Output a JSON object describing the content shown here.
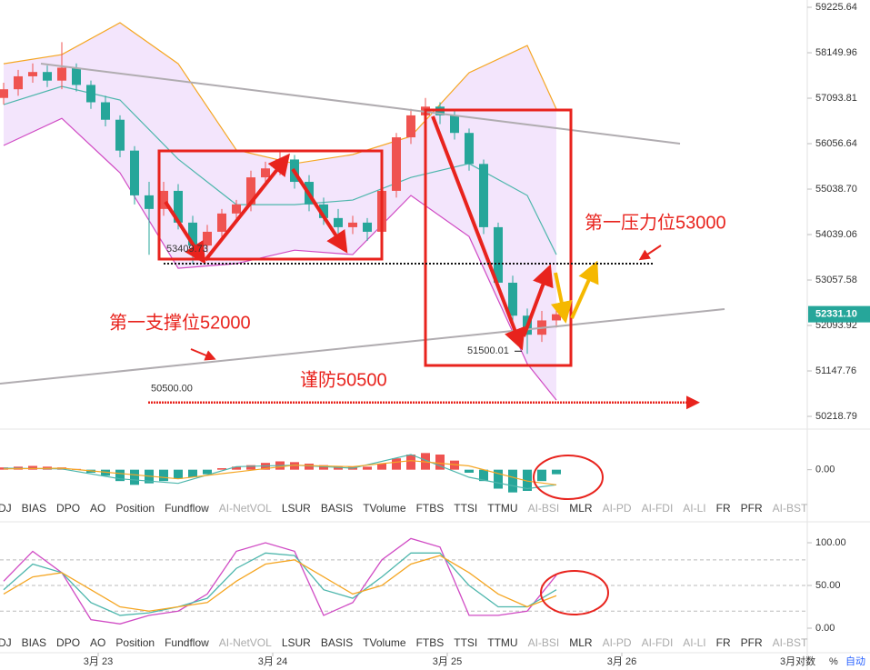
{
  "chart_data": [
    {
      "type": "candlestick",
      "log_scale": true,
      "grid": false,
      "up_color": "#ef5350",
      "down_color": "#26a69a",
      "xlim": [
        -0.5,
        110.5
      ],
      "xticks": [
        {
          "value": 13,
          "label": "3月 23"
        },
        {
          "value": 37,
          "label": "3月 24"
        },
        {
          "value": 61,
          "label": "3月 25"
        },
        {
          "value": 85,
          "label": "3月 26"
        }
      ],
      "ylim": [
        49962,
        59400
      ],
      "yticks": [
        59225.64,
        58149.96,
        57093.81,
        56056.64,
        {
          "value": 55038.7,
          "label": "55038.70"
        },
        54039.06,
        53057.58,
        52093.92,
        51147.76,
        50218.79
      ],
      "x": [
        0,
        2,
        4,
        6,
        8,
        10,
        12,
        14,
        16,
        18,
        20,
        22,
        24,
        26,
        28,
        30,
        32,
        34,
        36,
        38,
        40,
        42,
        44,
        46,
        48,
        50,
        52,
        54,
        56,
        58,
        60,
        62,
        64,
        66,
        68,
        70,
        72,
        74,
        76
      ],
      "open": [
        57100,
        57300,
        57600,
        57700,
        57500,
        57800,
        57400,
        57000,
        56600,
        55900,
        54900,
        54600,
        55000,
        54300,
        53800,
        54100,
        54500,
        54700,
        55300,
        55500,
        55700,
        55200,
        54700,
        54400,
        54200,
        54300,
        54100,
        55000,
        56200,
        56700,
        56900,
        56700,
        56300,
        55600,
        54200,
        53000,
        52300,
        51900,
        52200
      ],
      "high": [
        57450,
        57750,
        57900,
        57850,
        58400,
        57900,
        57500,
        57150,
        56700,
        56000,
        55200,
        55200,
        55150,
        54450,
        54250,
        54600,
        54800,
        55450,
        55650,
        55900,
        55800,
        55350,
        54850,
        54600,
        54450,
        54400,
        55150,
        56300,
        56850,
        57100,
        57000,
        56800,
        56400,
        55700,
        54300,
        53150,
        52450,
        52400,
        52500
      ],
      "low": [
        56950,
        57150,
        57450,
        57350,
        57300,
        57250,
        56850,
        56450,
        55750,
        54700,
        53600,
        54450,
        54150,
        53409.73,
        53650,
        53950,
        54350,
        54550,
        55100,
        55350,
        55050,
        54550,
        54250,
        53900,
        54050,
        53900,
        53950,
        54850,
        56050,
        56550,
        56500,
        56150,
        55450,
        54050,
        52850,
        52100,
        51500.01,
        51750,
        52050
      ],
      "close": [
        57300,
        57600,
        57700,
        57500,
        57800,
        57400,
        57000,
        56600,
        55900,
        54900,
        54600,
        55000,
        54300,
        53800,
        54100,
        54500,
        54700,
        55300,
        55500,
        55700,
        55200,
        54700,
        54400,
        54200,
        54300,
        54100,
        55000,
        56200,
        56700,
        56900,
        56700,
        56300,
        55600,
        54200,
        53000,
        52300,
        51900,
        52200,
        52331.1
      ],
      "bands": {
        "x": [
          0,
          8,
          16,
          24,
          32,
          40,
          48,
          56,
          64,
          72,
          76
        ],
        "upper": [
          57893,
          58106,
          58858,
          57893,
          55914,
          55608,
          55811,
          56223,
          57683,
          58320,
          56844
        ],
        "middle": [
          56947,
          57366,
          57052,
          55708,
          54695,
          54695,
          54796,
          55299,
          55608,
          54898,
          53604
        ],
        "lower": [
          56016,
          56632,
          55401,
          53309,
          53410,
          53700,
          53604,
          54898,
          53996,
          51296,
          50549
        ],
        "colors": [
          "#f5a623",
          "#4db6ac",
          "#d04bc4"
        ],
        "fill": "#f1e1fb"
      },
      "last_price": {
        "value": 52331.1,
        "label": "52331.10"
      },
      "warn_level": {
        "value": 50500,
        "label": "50500.00"
      },
      "annotations": [
        "第一压力位53000",
        "第一支撑位52000",
        "谨防50500"
      ]
    },
    {
      "type": "macd",
      "ylim": [
        -400,
        500
      ],
      "yticks": [
        {
          "value": 0,
          "label": "0.00"
        }
      ],
      "x": [
        0,
        2,
        4,
        6,
        8,
        10,
        12,
        14,
        16,
        18,
        20,
        22,
        24,
        26,
        28,
        30,
        32,
        34,
        36,
        38,
        40,
        42,
        44,
        46,
        48,
        50,
        52,
        54,
        56,
        58,
        60,
        62,
        64,
        66,
        68,
        70,
        72,
        74,
        76
      ],
      "hist": [
        30,
        40,
        50,
        40,
        30,
        10,
        -40,
        -80,
        -150,
        -200,
        -180,
        -150,
        -120,
        -100,
        -60,
        20,
        40,
        60,
        90,
        110,
        100,
        80,
        60,
        50,
        40,
        40,
        80,
        150,
        200,
        220,
        200,
        120,
        -40,
        -150,
        -250,
        -300,
        -280,
        -150,
        -60
      ],
      "up_color": "#ef5350",
      "down_color": "#26a69a",
      "line_x": [
        0,
        8,
        16,
        24,
        32,
        40,
        48,
        56,
        64,
        72,
        76
      ],
      "dif": [
        20,
        10,
        -120,
        -180,
        40,
        60,
        20,
        200,
        -100,
        -250,
        -200
      ],
      "dea": [
        10,
        20,
        -50,
        -120,
        -30,
        60,
        40,
        120,
        50,
        -150,
        -200
      ],
      "line_colors": [
        "#4db6ac",
        "#f5a623"
      ]
    },
    {
      "type": "line",
      "ylim": [
        -11.7,
        112.8
      ],
      "yticks": [
        {
          "value": 100,
          "label": "100.00"
        },
        {
          "value": 50,
          "label": "50.00"
        },
        {
          "value": 0,
          "label": "0.00"
        }
      ],
      "levels": [
        80,
        50,
        20
      ],
      "x": [
        0,
        4,
        8,
        12,
        16,
        20,
        24,
        28,
        32,
        36,
        40,
        44,
        48,
        52,
        56,
        60,
        64,
        68,
        72,
        76
      ],
      "lines": [
        {
          "color": "#d04bc4",
          "values": [
            55,
            90,
            65,
            10,
            5,
            15,
            20,
            40,
            90,
            100,
            90,
            15,
            30,
            80,
            105,
            95,
            15,
            15,
            20,
            62
          ]
        },
        {
          "color": "#4db6ac",
          "values": [
            45,
            75,
            65,
            30,
            15,
            18,
            25,
            35,
            70,
            88,
            85,
            45,
            35,
            60,
            88,
            88,
            50,
            25,
            25,
            45
          ]
        },
        {
          "color": "#f5a623",
          "values": [
            40,
            60,
            65,
            45,
            25,
            20,
            25,
            30,
            55,
            75,
            80,
            60,
            40,
            50,
            75,
            85,
            65,
            40,
            25,
            38
          ]
        }
      ]
    }
  ],
  "ui": {
    "tabs": [
      "DJ",
      "BIAS",
      "DPO",
      "AO",
      "Position",
      "Fundflow",
      "AI-NetVOL",
      "LSUR",
      "BASIS",
      "TVolume",
      "FTBS",
      "TTSI",
      "TTMU",
      "AI-BSI",
      "MLR",
      "AI-PD",
      "AI-FDI",
      "AI-LI",
      "FR",
      "PFR",
      "AI-BST"
    ],
    "axis_buttons": [
      "3月对数",
      "%",
      "自动"
    ]
  }
}
